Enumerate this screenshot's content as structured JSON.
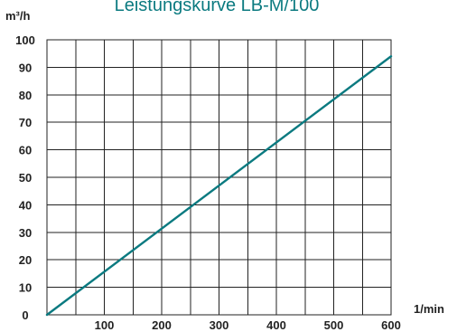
{
  "chart_data": {
    "type": "line",
    "title": "Leistungskurve LB-M/100",
    "ylabel": "m³/h",
    "xlabel": "1/min",
    "xlim": [
      0,
      600
    ],
    "ylim": [
      0,
      100
    ],
    "x_ticks": [
      100,
      200,
      300,
      400,
      500,
      600
    ],
    "y_ticks": [
      0,
      10,
      20,
      30,
      40,
      50,
      60,
      70,
      80,
      90,
      100
    ],
    "grid": true,
    "series": [
      {
        "x": [
          0,
          600
        ],
        "y": [
          0,
          94
        ],
        "color": "#0b7a80"
      }
    ]
  }
}
